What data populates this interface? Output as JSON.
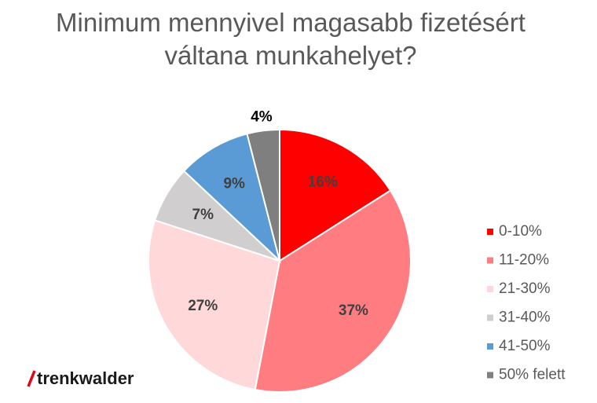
{
  "chart_data": {
    "type": "pie",
    "title": "Minimum mennyivel magasabb fizetésért váltana munkahelyet?",
    "categories": [
      "0-10%",
      "11-20%",
      "21-30%",
      "31-40%",
      "41-50%",
      "50% felett"
    ],
    "values": [
      16,
      37,
      27,
      7,
      9,
      4
    ],
    "value_labels": [
      "16%",
      "37%",
      "27%",
      "7%",
      "9%",
      "4%"
    ],
    "colors": [
      "#ff0000",
      "#ff7c80",
      "#ffd9d9",
      "#d0cece",
      "#5b9bd5",
      "#7f7f7f"
    ],
    "legend": "right"
  },
  "logo": "trenkwalder"
}
